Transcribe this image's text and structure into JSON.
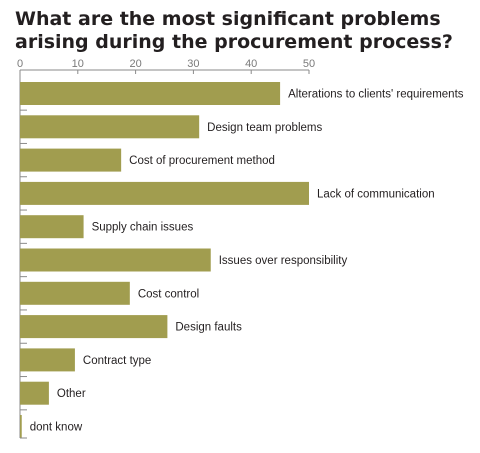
{
  "title_lines": [
    "What are the most significant problems",
    "arising during the procurement process?"
  ],
  "colors": {
    "bar": "#a19d4f",
    "axis": "#8a8a8a",
    "text": "#231f20"
  },
  "chart_data": {
    "type": "bar",
    "orientation": "horizontal",
    "title": "What are the most significant problems arising during the procurement process?",
    "xlabel": "",
    "ylabel": "",
    "xlim": [
      0,
      50
    ],
    "xticks": [
      0,
      10,
      20,
      30,
      40,
      50
    ],
    "grid": false,
    "legend": "none",
    "categories": [
      "Alterations to clients' requirements",
      "Design team problems",
      "Cost of procurement method",
      "Lack of communication",
      "Supply chain issues",
      "Issues over responsibility",
      "Cost control",
      "Design faults",
      "Contract type",
      "Other",
      "dont know"
    ],
    "values": [
      45,
      31,
      17.5,
      50,
      11,
      33,
      19,
      25.5,
      9.5,
      5,
      0.3
    ]
  }
}
